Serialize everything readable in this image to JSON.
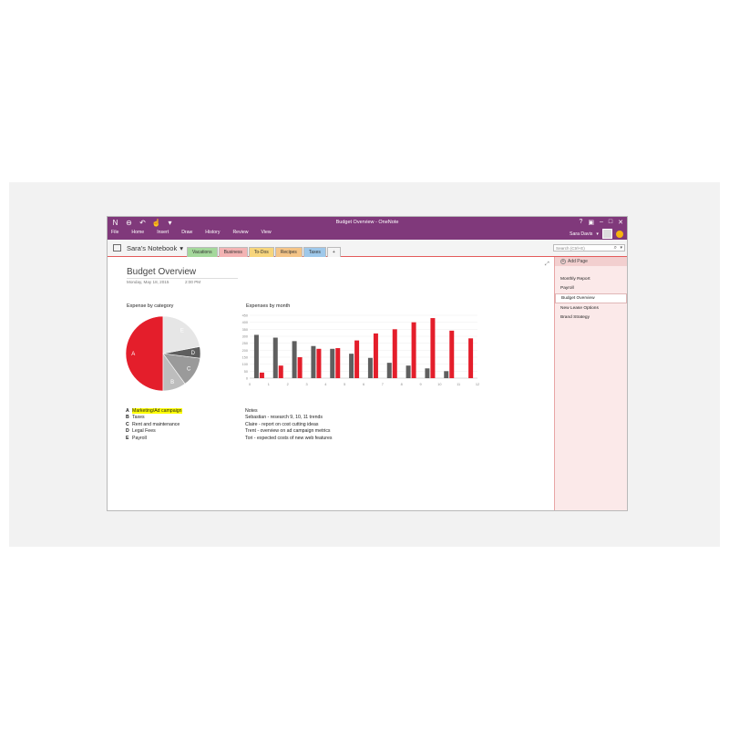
{
  "window": {
    "title": "Budget Overview - OneNote",
    "quick_access": [
      "onenote-icon",
      "back-icon",
      "undo-icon",
      "touch-icon",
      "customize-icon"
    ],
    "controls": [
      "help-icon",
      "ribbon-display-icon",
      "minimize-icon",
      "maximize-icon",
      "close-icon"
    ]
  },
  "ribbon": {
    "tabs": [
      "File",
      "Home",
      "Insert",
      "Draw",
      "History",
      "Review",
      "View"
    ]
  },
  "user": {
    "name": "Sara Davis",
    "accent": "#80397b"
  },
  "notebook": {
    "name": "Sara's Notebook",
    "sections": [
      {
        "label": "Vacations",
        "color": "#a4d89b"
      },
      {
        "label": "Business",
        "color": "#f3b3b3"
      },
      {
        "label": "To-Dos",
        "color": "#f7d57c"
      },
      {
        "label": "Recipes",
        "color": "#f4c487"
      },
      {
        "label": "Taxes",
        "color": "#9ec8ea"
      },
      {
        "label": "+",
        "color": "#f4f4f4"
      }
    ],
    "search_placeholder": "Search (Ctrl+E)"
  },
  "page": {
    "title": "Budget Overview",
    "date": "Monday, May 18, 2015",
    "time": "2:00 PM",
    "legend": [
      {
        "key": "A",
        "label": "Marketing/Ad campaign",
        "highlight": true
      },
      {
        "key": "B",
        "label": "Taxes",
        "highlight": false
      },
      {
        "key": "C",
        "label": "Rent and maintenance",
        "highlight": false
      },
      {
        "key": "D",
        "label": "Legal Fees",
        "highlight": false
      },
      {
        "key": "E",
        "label": "Payroll",
        "highlight": false
      }
    ],
    "notes_title": "Notes",
    "notes": [
      "Sebastian - research 9, 10, 11 trends",
      "Claire - report on cost cutting ideas",
      "Trent - overview on ad campaign metrics",
      "Tori - expected costs of new web features"
    ]
  },
  "pages_panel": {
    "add_label": "Add Page",
    "items": [
      "Monthly Report",
      "Payroll",
      "Budget Overview",
      "New Lease Options",
      "Brand Strategy"
    ],
    "selected": 2
  },
  "chart_data": [
    {
      "type": "pie",
      "title": "Expense by category",
      "labels": [
        "A",
        "B",
        "C",
        "D",
        "E"
      ],
      "values": [
        50,
        10,
        13,
        5,
        22
      ],
      "colors": [
        "#e41e2b",
        "#bdbdbd",
        "#9a9a9a",
        "#5e5e5e",
        "#e6e6e6"
      ]
    },
    {
      "type": "bar",
      "title": "Expenses by month",
      "categories": [
        "1",
        "2",
        "3",
        "4",
        "5",
        "6",
        "7",
        "8",
        "9",
        "10",
        "11",
        "12"
      ],
      "series": [
        {
          "values": [
            310,
            290,
            265,
            230,
            210,
            175,
            145,
            110,
            90,
            70,
            50,
            0
          ],
          "color": "#5f5f5f"
        },
        {
          "values": [
            40,
            90,
            150,
            210,
            215,
            270,
            320,
            350,
            400,
            430,
            340,
            285
          ],
          "color": "#e41e2b"
        }
      ],
      "yticks": [
        "0",
        "50",
        "100",
        "150",
        "200",
        "250",
        "300",
        "350",
        "400",
        "450"
      ],
      "ylim": [
        0,
        450
      ]
    }
  ]
}
